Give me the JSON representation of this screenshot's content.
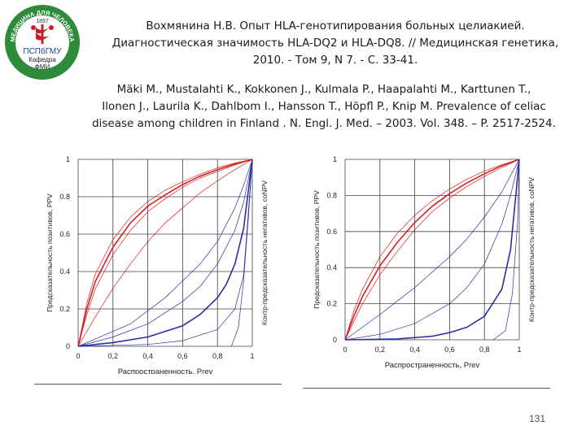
{
  "logo": {
    "arc_text": "МЕДИЦИНА ДЛЯ ЧЕЛОВЕКА",
    "year": "1897",
    "org": "ПСПбГМУ",
    "dept_line1": "Кафедра",
    "dept_line2": "ФМИ"
  },
  "reference1": {
    "line1": "Вохмянина Н.В. Опыт HLA-генотипирования больных целиакией.",
    "line2": "Диагностическая значимость HLA-DQ2 и HLA-DQ8. // Медицинская генетика,",
    "line3": "2010. - Том 9, N 7. - С. 33-41."
  },
  "reference2": {
    "line1": "Mäki M., Mustalahti K., Kokkonen J., Kulmala P., Haapalahti M., Karttunen T.,",
    "line2": "Ilonen J., Laurila K., Dahlbom I., Hansson T., Höpfl P., Knip M. Prevalence of celiac",
    "line3": "disease among children in Finland . N. Engl. J. Med. – 2003. Vol. 348. – P. 2517-2524."
  },
  "colors": {
    "ppv": "#d42020",
    "npv": "#2b2f9e",
    "grid": "#404040"
  },
  "chart_data": [
    {
      "type": "line",
      "xlabel": "Распространенность, Prev",
      "ylabel_left": "Предсказательность позитивов, PPV",
      "ylabel_right": "Контр-предсказательность негативов, coNPV",
      "xlim": [
        0,
        1
      ],
      "ylim": [
        0,
        1
      ],
      "x_ticks": [
        "0",
        "0,2",
        "0,4",
        "0,6",
        "0,8",
        "1"
      ],
      "y_ticks": [
        "0",
        "0.2",
        "0.4",
        "0.6",
        "0.8",
        "1"
      ],
      "grid": true,
      "series": [
        {
          "color": "ppv",
          "width": 1.6,
          "values": [
            [
              0,
              0
            ],
            [
              0.05,
              0.2
            ],
            [
              0.1,
              0.35
            ],
            [
              0.2,
              0.53
            ],
            [
              0.3,
              0.66
            ],
            [
              0.4,
              0.75
            ],
            [
              0.5,
              0.81
            ],
            [
              0.6,
              0.865
            ],
            [
              0.7,
              0.91
            ],
            [
              0.8,
              0.945
            ],
            [
              0.9,
              0.975
            ],
            [
              1,
              1
            ]
          ]
        },
        {
          "color": "ppv",
          "width": 0.7,
          "values": [
            [
              0,
              0
            ],
            [
              0.05,
              0.23
            ],
            [
              0.1,
              0.39
            ],
            [
              0.2,
              0.57
            ],
            [
              0.3,
              0.69
            ],
            [
              0.4,
              0.775
            ],
            [
              0.5,
              0.835
            ],
            [
              0.6,
              0.88
            ],
            [
              0.7,
              0.92
            ],
            [
              0.8,
              0.955
            ],
            [
              0.9,
              0.98
            ],
            [
              1,
              1
            ]
          ]
        },
        {
          "color": "ppv",
          "width": 0.7,
          "values": [
            [
              0,
              0
            ],
            [
              0.05,
              0.17
            ],
            [
              0.1,
              0.31
            ],
            [
              0.2,
              0.49
            ],
            [
              0.3,
              0.62
            ],
            [
              0.4,
              0.72
            ],
            [
              0.5,
              0.79
            ],
            [
              0.6,
              0.85
            ],
            [
              0.7,
              0.9
            ],
            [
              0.8,
              0.935
            ],
            [
              0.9,
              0.97
            ],
            [
              1,
              1
            ]
          ]
        },
        {
          "color": "ppv",
          "width": 0.7,
          "values": [
            [
              0,
              0
            ],
            [
              0.1,
              0.16
            ],
            [
              0.2,
              0.31
            ],
            [
              0.3,
              0.44
            ],
            [
              0.4,
              0.56
            ],
            [
              0.5,
              0.66
            ],
            [
              0.6,
              0.74
            ],
            [
              0.7,
              0.82
            ],
            [
              0.8,
              0.885
            ],
            [
              0.9,
              0.945
            ],
            [
              1,
              1
            ]
          ]
        },
        {
          "color": "npv",
          "width": 1.6,
          "values": [
            [
              0,
              0
            ],
            [
              0.2,
              0.02
            ],
            [
              0.4,
              0.05
            ],
            [
              0.6,
              0.11
            ],
            [
              0.7,
              0.17
            ],
            [
              0.8,
              0.26
            ],
            [
              0.85,
              0.33
            ],
            [
              0.9,
              0.44
            ],
            [
              0.95,
              0.63
            ],
            [
              1,
              1
            ]
          ]
        },
        {
          "color": "npv",
          "width": 0.7,
          "values": [
            [
              0,
              0
            ],
            [
              0.2,
              0.05
            ],
            [
              0.4,
              0.12
            ],
            [
              0.6,
              0.24
            ],
            [
              0.7,
              0.32
            ],
            [
              0.8,
              0.44
            ],
            [
              0.9,
              0.62
            ],
            [
              0.95,
              0.77
            ],
            [
              1,
              1
            ]
          ]
        },
        {
          "color": "npv",
          "width": 0.7,
          "values": [
            [
              0,
              0
            ],
            [
              0.4,
              0.01
            ],
            [
              0.6,
              0.03
            ],
            [
              0.8,
              0.09
            ],
            [
              0.9,
              0.2
            ],
            [
              0.95,
              0.38
            ],
            [
              1,
              1
            ]
          ]
        },
        {
          "color": "npv",
          "width": 0.7,
          "values": [
            [
              0,
              0
            ],
            [
              0.3,
              0.12
            ],
            [
              0.5,
              0.26
            ],
            [
              0.7,
              0.44
            ],
            [
              0.8,
              0.56
            ],
            [
              0.9,
              0.74
            ],
            [
              0.95,
              0.86
            ],
            [
              1,
              1
            ]
          ]
        },
        {
          "color": "npv",
          "width": 0.7,
          "values": [
            [
              0.88,
              0
            ],
            [
              0.92,
              0.1
            ],
            [
              0.95,
              0.35
            ],
            [
              0.98,
              0.72
            ],
            [
              1,
              1
            ]
          ]
        }
      ]
    },
    {
      "type": "line",
      "xlabel": "Распространенность, Prev",
      "ylabel_left": "Предсказательность позитивов, PPV",
      "ylabel_right": "Контр-предсказательность негативов, coNPV",
      "xlim": [
        0,
        1
      ],
      "ylim": [
        0,
        1
      ],
      "x_ticks": [
        "0",
        "0,2",
        "0,4",
        "0,6",
        "0,8",
        "1"
      ],
      "y_ticks": [
        "0",
        "0.2",
        "0.4",
        "0.6",
        "0.8",
        "1"
      ],
      "grid": true,
      "series": [
        {
          "color": "ppv",
          "width": 1.6,
          "values": [
            [
              0,
              0
            ],
            [
              0.05,
              0.13
            ],
            [
              0.1,
              0.24
            ],
            [
              0.2,
              0.41
            ],
            [
              0.3,
              0.54
            ],
            [
              0.4,
              0.65
            ],
            [
              0.5,
              0.74
            ],
            [
              0.6,
              0.81
            ],
            [
              0.7,
              0.87
            ],
            [
              0.8,
              0.92
            ],
            [
              0.9,
              0.965
            ],
            [
              1,
              1
            ]
          ]
        },
        {
          "color": "ppv",
          "width": 0.7,
          "values": [
            [
              0,
              0
            ],
            [
              0.05,
              0.16
            ],
            [
              0.1,
              0.28
            ],
            [
              0.2,
              0.46
            ],
            [
              0.3,
              0.59
            ],
            [
              0.4,
              0.69
            ],
            [
              0.5,
              0.77
            ],
            [
              0.6,
              0.835
            ],
            [
              0.7,
              0.89
            ],
            [
              0.8,
              0.935
            ],
            [
              0.9,
              0.97
            ],
            [
              1,
              1
            ]
          ]
        },
        {
          "color": "ppv",
          "width": 0.7,
          "values": [
            [
              0,
              0
            ],
            [
              0.05,
              0.1
            ],
            [
              0.1,
              0.2
            ],
            [
              0.2,
              0.36
            ],
            [
              0.3,
              0.49
            ],
            [
              0.4,
              0.61
            ],
            [
              0.5,
              0.71
            ],
            [
              0.6,
              0.785
            ],
            [
              0.7,
              0.85
            ],
            [
              0.8,
              0.905
            ],
            [
              0.9,
              0.955
            ],
            [
              1,
              1
            ]
          ]
        },
        {
          "color": "npv",
          "width": 0.7,
          "values": [
            [
              0,
              0
            ],
            [
              0.2,
              0.14
            ],
            [
              0.4,
              0.29
            ],
            [
              0.6,
              0.46
            ],
            [
              0.7,
              0.56
            ],
            [
              0.8,
              0.68
            ],
            [
              0.9,
              0.82
            ],
            [
              1,
              1
            ]
          ]
        },
        {
          "color": "npv",
          "width": 0.7,
          "values": [
            [
              0,
              0
            ],
            [
              0.2,
              0.03
            ],
            [
              0.4,
              0.09
            ],
            [
              0.6,
              0.2
            ],
            [
              0.7,
              0.29
            ],
            [
              0.8,
              0.42
            ],
            [
              0.9,
              0.64
            ],
            [
              0.95,
              0.8
            ],
            [
              1,
              1
            ]
          ]
        },
        {
          "color": "npv",
          "width": 1.6,
          "values": [
            [
              0,
              0
            ],
            [
              0.3,
              0.005
            ],
            [
              0.5,
              0.02
            ],
            [
              0.6,
              0.04
            ],
            [
              0.7,
              0.07
            ],
            [
              0.8,
              0.13
            ],
            [
              0.9,
              0.28
            ],
            [
              0.95,
              0.5
            ],
            [
              1,
              1
            ]
          ]
        },
        {
          "color": "npv",
          "width": 0.7,
          "values": [
            [
              0.85,
              0
            ],
            [
              0.92,
              0.05
            ],
            [
              0.96,
              0.25
            ],
            [
              0.99,
              0.65
            ],
            [
              1,
              1
            ]
          ]
        }
      ]
    }
  ]
}
